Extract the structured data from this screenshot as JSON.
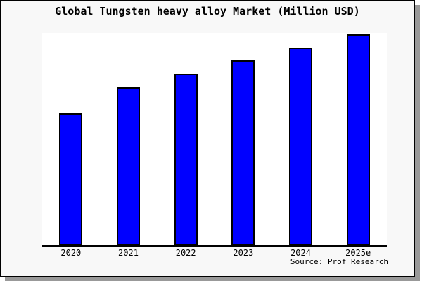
{
  "title": "Global Tungsten heavy alloy Market (Million USD)",
  "source_note": "Source: Prof Research",
  "colors": {
    "bar_fill": "#0000ff",
    "bar_border": "#000000",
    "figure_background": "#f8f8f8",
    "plot_background": "#ffffff",
    "frame_border": "#000000",
    "frame_shadow": "#999999",
    "text": "#000000"
  },
  "chart_data": {
    "type": "bar",
    "title": "Global Tungsten heavy alloy Market (Million USD)",
    "categories": [
      "2020",
      "2021",
      "2022",
      "2023",
      "2024",
      "2025e"
    ],
    "values": [
      62.7,
      75.0,
      81.3,
      87.7,
      93.7,
      100.0
    ],
    "values_note": "No y-axis ticks, labels or gridlines are shown; values are relative bar heights expressed as percent of the tallest bar (2025e = 100)",
    "xlabel": "",
    "ylabel": "",
    "ylim": [
      0,
      100
    ],
    "grid": false,
    "legend": "none",
    "annotations": [
      "Source: Prof Research"
    ]
  }
}
